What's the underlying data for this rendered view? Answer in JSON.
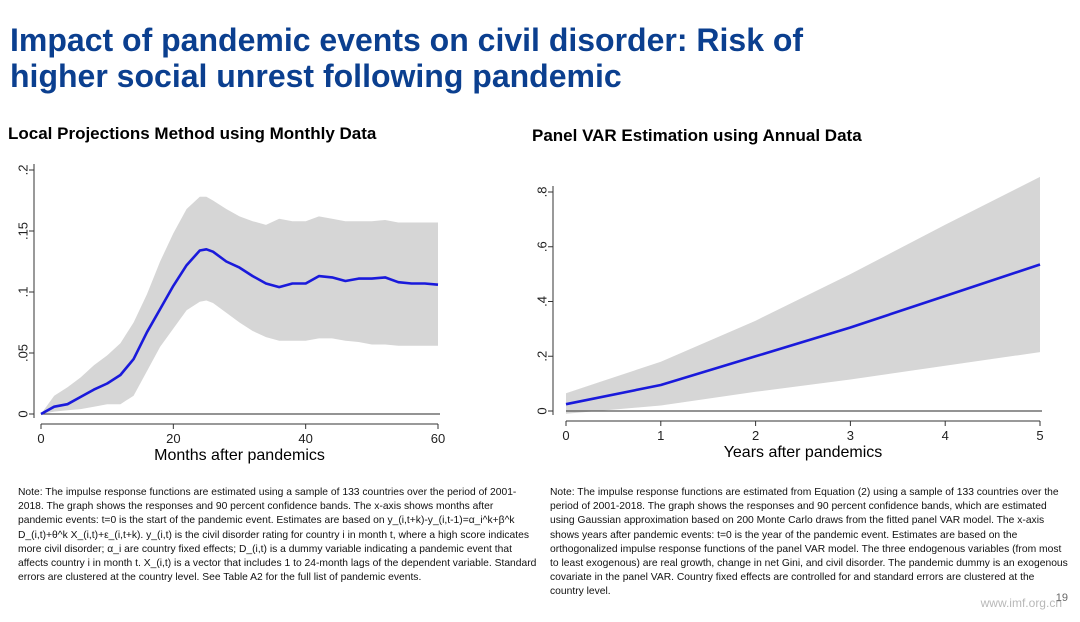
{
  "slide": {
    "title_line1": "Impact of pandemic events on civil disorder: Risk of",
    "title_line2": "higher social unrest following pandemic",
    "page_number": "19",
    "watermark": "www.imf.org.cn",
    "title_color": "#0b3f8f"
  },
  "chart_data": [
    {
      "type": "area",
      "title": "Local Projections Method using Monthly Data",
      "xlabel": "Months after pandemics",
      "ylabel": "",
      "xlim": [
        0,
        60
      ],
      "ylim": [
        0,
        0.2
      ],
      "x_ticks": [
        0,
        20,
        40,
        60
      ],
      "y_ticks": [
        0,
        0.05,
        0.1,
        0.15,
        0.2
      ],
      "y_tick_labels": [
        "0",
        ".05",
        ".1",
        ".15",
        ".2"
      ],
      "grid": false,
      "series_color": "#1a1adb",
      "band_color": "#d6d6d6",
      "x": [
        0,
        2,
        4,
        6,
        8,
        10,
        12,
        14,
        16,
        18,
        20,
        22,
        24,
        25,
        26,
        28,
        30,
        32,
        34,
        36,
        38,
        40,
        42,
        44,
        46,
        48,
        50,
        52,
        54,
        56,
        58,
        60
      ],
      "estimate": [
        0,
        0.006,
        0.008,
        0.014,
        0.02,
        0.025,
        0.032,
        0.045,
        0.067,
        0.086,
        0.105,
        0.122,
        0.134,
        0.135,
        0.133,
        0.125,
        0.12,
        0.113,
        0.107,
        0.104,
        0.107,
        0.107,
        0.113,
        0.112,
        0.109,
        0.111,
        0.111,
        0.112,
        0.108,
        0.107,
        0.107,
        0.106
      ],
      "upper": [
        0,
        0.015,
        0.022,
        0.03,
        0.04,
        0.048,
        0.058,
        0.075,
        0.098,
        0.125,
        0.148,
        0.168,
        0.178,
        0.178,
        0.175,
        0.168,
        0.162,
        0.158,
        0.155,
        0.16,
        0.158,
        0.158,
        0.162,
        0.16,
        0.158,
        0.158,
        0.158,
        0.159,
        0.157,
        0.157,
        0.157,
        0.157
      ],
      "lower": [
        0,
        0.002,
        0.003,
        0.004,
        0.006,
        0.008,
        0.008,
        0.015,
        0.035,
        0.055,
        0.07,
        0.085,
        0.092,
        0.093,
        0.091,
        0.083,
        0.075,
        0.068,
        0.063,
        0.06,
        0.06,
        0.06,
        0.062,
        0.062,
        0.06,
        0.059,
        0.057,
        0.057,
        0.056,
        0.056,
        0.056,
        0.056
      ],
      "note": "Note: The impulse response functions are estimated using a sample of 133 countries over the period of 2001-2018. The graph shows the responses and 90 percent confidence bands. The x-axis shows months after pandemic events: t=0 is the start of the pandemic event. Estimates are based on  y_(i,t+k)-y_(i,t-1)=α_i^k+β^k D_(i,t)+θ^k X_(i,t)+ε_(i,t+k). y_(i,t) is the civil disorder rating for country i in month t, where a high score indicates more civil disorder; α_i are country fixed effects; D_(i,t) is a dummy variable indicating a pandemic event that affects country i in month t. X_(i,t) is a vector that includes 1 to 24-month lags of the dependent variable. Standard errors are clustered at the country level. See Table A2 for the full list of pandemic events."
    },
    {
      "type": "area",
      "title": "Panel VAR Estimation using Annual Data",
      "xlabel": "Years after pandemics",
      "ylabel": "",
      "xlim": [
        0,
        5
      ],
      "ylim": [
        0,
        0.8
      ],
      "x_ticks": [
        0,
        1,
        2,
        3,
        4,
        5
      ],
      "y_ticks": [
        0,
        0.2,
        0.4,
        0.6,
        0.8
      ],
      "y_tick_labels": [
        "0",
        ".2",
        ".4",
        ".6",
        ".8"
      ],
      "grid": false,
      "series_color": "#1a1adb",
      "band_color": "#d6d6d6",
      "x": [
        0,
        1,
        2,
        3,
        4,
        5
      ],
      "estimate": [
        0.025,
        0.095,
        0.2,
        0.305,
        0.42,
        0.535
      ],
      "upper": [
        0.065,
        0.18,
        0.33,
        0.5,
        0.68,
        0.855
      ],
      "lower": [
        -0.01,
        0.02,
        0.07,
        0.115,
        0.165,
        0.215
      ],
      "note": "Note: The impulse response functions are estimated from Equation (2) using a sample of 133 countries over the period of 2001-2018. The graph shows the responses and 90 percent confidence bands, which are estimated using Gaussian approximation based on 200 Monte Carlo draws from the fitted panel VAR model. The x-axis shows years after pandemic events: t=0 is the year of the pandemic event. Estimates are based on the orthogonalized impulse response functions of the panel VAR model. The three endogenous variables (from most to least exogenous) are real growth, change in net Gini, and civil disorder. The pandemic dummy is an exogenous covariate in the panel VAR. Country fixed effects are controlled for and standard errors are clustered at the country level."
    }
  ]
}
